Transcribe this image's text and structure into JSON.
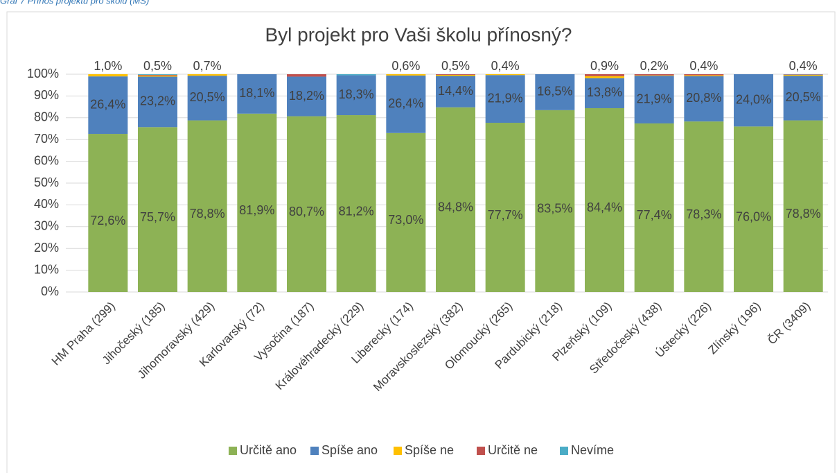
{
  "caption": "Graf 7 Přínos projektu pro školu (MŠ)",
  "chart_data": {
    "type": "stacked_bar",
    "title": "Byl projekt pro Vaši školu přínosný?",
    "categories": [
      "HM Praha (299)",
      "Jihočeský (185)",
      "Jihomoravský (429)",
      "Karlovarský (72)",
      "Vysočina (187)",
      "Královéhradecký (229)",
      "Liberecký (174)",
      "Moravskoslezský (382)",
      "Olomoucký (265)",
      "Pardubický (218)",
      "Plzeňský (109)",
      "Středočeský (438)",
      "Ústecký (226)",
      "Zlínský (196)",
      "ČR (3409)"
    ],
    "series": [
      {
        "name": "Určitě ano",
        "color": "#8db255",
        "values": [
          72.6,
          75.7,
          78.8,
          81.9,
          80.7,
          81.2,
          73.0,
          84.8,
          77.7,
          83.5,
          84.4,
          77.4,
          78.3,
          76.0,
          78.8
        ],
        "value_labels": [
          "72,6%",
          "75,7%",
          "78,8%",
          "81,9%",
          "80,7%",
          "81,2%",
          "73,0%",
          "84,8%",
          "77,7%",
          "83,5%",
          "84,4%",
          "77,4%",
          "78,3%",
          "76,0%",
          "78,8%"
        ]
      },
      {
        "name": "Spíše ano",
        "color": "#4f81bd",
        "values": [
          26.4,
          23.2,
          20.5,
          18.1,
          18.2,
          18.3,
          26.4,
          14.4,
          21.9,
          16.5,
          13.8,
          21.9,
          20.8,
          24.0,
          20.5
        ],
        "value_labels": [
          "26,4%",
          "23,2%",
          "20,5%",
          "18,1%",
          "18,2%",
          "18,3%",
          "26,4%",
          "14,4%",
          "21,9%",
          "16,5%",
          "13,8%",
          "21,9%",
          "20,8%",
          "24,0%",
          "20,5%"
        ]
      },
      {
        "name": "Spíše ne",
        "color": "#ffc000",
        "values": [
          1.0,
          0.5,
          0.7,
          0,
          0,
          0,
          0.6,
          0.5,
          0.4,
          0,
          0.9,
          0.2,
          0.4,
          0,
          0.4
        ],
        "value_labels": [
          "1,0%",
          "0,5%",
          "0,7%",
          null,
          null,
          null,
          "0,6%",
          "0,5%",
          "0,4%",
          null,
          "0,9%",
          "0,2%",
          "0,4%",
          null,
          "0,4%"
        ]
      },
      {
        "name": "Určitě ne",
        "color": "#c0504d",
        "values": [
          0,
          0.3,
          0,
          0,
          1.1,
          0,
          0,
          0.3,
          0,
          0,
          0.9,
          0.5,
          0.5,
          0,
          0.2
        ]
      },
      {
        "name": "Nevíme",
        "color": "#4bacc6",
        "values": [
          0,
          0.3,
          0,
          0,
          0,
          0.5,
          0,
          0,
          0,
          0,
          0,
          0,
          0,
          0,
          0.1
        ]
      }
    ],
    "ylim": [
      0,
      100
    ],
    "yticks": [
      {
        "value": 0,
        "label": "0%"
      },
      {
        "value": 10,
        "label": "10%"
      },
      {
        "value": 20,
        "label": "20%"
      },
      {
        "value": 30,
        "label": "30%"
      },
      {
        "value": 40,
        "label": "40%"
      },
      {
        "value": 50,
        "label": "50%"
      },
      {
        "value": 60,
        "label": "60%"
      },
      {
        "value": 70,
        "label": "70%"
      },
      {
        "value": 80,
        "label": "80%"
      },
      {
        "value": 90,
        "label": "90%"
      },
      {
        "value": 100,
        "label": "100%"
      }
    ],
    "grid": true,
    "legend": "bottom"
  }
}
